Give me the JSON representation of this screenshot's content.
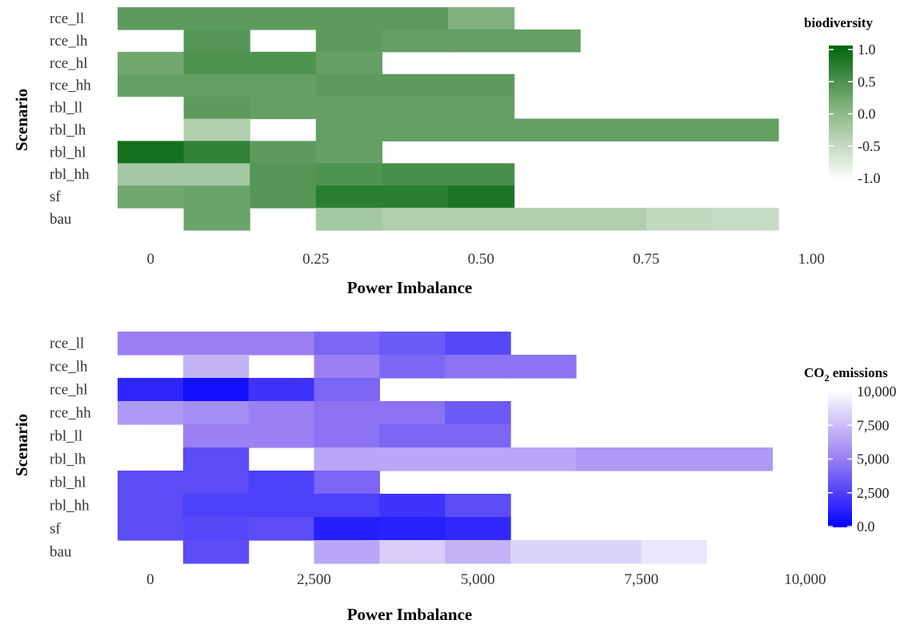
{
  "chart_data": [
    {
      "type": "heatmap",
      "xlabel": "Power Imbalance",
      "ylabel": "Scenario",
      "categories": [
        "rce_ll",
        "rce_lh",
        "rce_hl",
        "rce_hh",
        "rbl_ll",
        "rbl_lh",
        "rbl_hl",
        "rbl_hh",
        "sf",
        "bau"
      ],
      "x": [
        0.05,
        0.15,
        0.25,
        0.35,
        0.45,
        0.55,
        0.65,
        0.75,
        0.85,
        0.95,
        1.05
      ],
      "xlim": [
        -0.05,
        1.05
      ],
      "xticks": [
        0,
        0.25,
        0.5,
        0.75,
        1.0
      ],
      "xtick_labels": [
        "0",
        "0.25",
        "0.50",
        "0.75",
        "1.00"
      ],
      "values": [
        [
          0.35,
          0.35,
          0.35,
          0.35,
          0.35,
          0.1,
          null,
          null,
          null,
          null,
          null
        ],
        [
          null,
          0.4,
          null,
          0.35,
          0.3,
          0.3,
          0.3,
          null,
          null,
          null,
          null
        ],
        [
          0.2,
          0.45,
          0.45,
          0.3,
          null,
          null,
          null,
          null,
          null,
          null,
          null
        ],
        [
          0.3,
          0.3,
          0.3,
          0.35,
          0.35,
          0.35,
          null,
          null,
          null,
          null,
          null
        ],
        [
          null,
          0.35,
          0.3,
          0.3,
          0.3,
          0.3,
          null,
          null,
          null,
          null,
          null
        ],
        [
          null,
          -0.3,
          null,
          0.3,
          0.3,
          0.3,
          0.3,
          0.3,
          0.3,
          0.3,
          null
        ],
        [
          0.85,
          0.65,
          0.35,
          0.3,
          null,
          null,
          null,
          null,
          null,
          null,
          null
        ],
        [
          -0.2,
          -0.2,
          0.4,
          0.45,
          0.5,
          0.5,
          null,
          null,
          null,
          null,
          null
        ],
        [
          0.2,
          0.25,
          0.4,
          0.7,
          0.7,
          0.8,
          null,
          null,
          null,
          null,
          null
        ],
        [
          null,
          0.25,
          null,
          -0.2,
          -0.3,
          -0.3,
          -0.3,
          -0.3,
          -0.45,
          -0.5,
          null
        ]
      ],
      "legend": {
        "title": "biodiversity",
        "position": "right",
        "min": -1.0,
        "max": 1.0,
        "ticks": [
          1.0,
          0.5,
          0.0,
          -0.5,
          -1.0
        ],
        "tick_labels": [
          "1.0",
          "0.5",
          "0.0",
          "-0.5",
          "-1.0"
        ],
        "color_low": "#ffffff",
        "color_high": "#00640a"
      }
    },
    {
      "type": "heatmap",
      "xlabel": "Power Imbalance",
      "ylabel": "Scenario",
      "categories": [
        "rce_ll",
        "rce_lh",
        "rce_hl",
        "rce_hh",
        "rbl_ll",
        "rbl_lh",
        "rbl_hl",
        "rbl_hh",
        "sf",
        "bau"
      ],
      "x": [
        500,
        1500,
        2500,
        3500,
        4500,
        5500,
        6500,
        7500,
        8500,
        9500,
        10500
      ],
      "xlim": [
        -500,
        10500
      ],
      "xticks": [
        0,
        2500,
        5000,
        7500,
        10000
      ],
      "xtick_labels": [
        "0",
        "2,500",
        "5,000",
        "7,500",
        "10,000"
      ],
      "values": [
        [
          5000,
          5000,
          5000,
          4000,
          3500,
          2800,
          null,
          null,
          null,
          null,
          null
        ],
        [
          null,
          7000,
          null,
          5000,
          4000,
          4500,
          4500,
          null,
          null,
          null,
          null
        ],
        [
          1500,
          600,
          2000,
          4000,
          null,
          null,
          null,
          null,
          null,
          null,
          null
        ],
        [
          6000,
          5500,
          5000,
          4500,
          4500,
          3500,
          null,
          null,
          null,
          null,
          null
        ],
        [
          null,
          5000,
          5000,
          4500,
          4000,
          4000,
          null,
          null,
          null,
          null,
          null
        ],
        [
          null,
          3000,
          null,
          6500,
          6500,
          6500,
          6500,
          6000,
          6000,
          6000,
          null
        ],
        [
          3000,
          3000,
          2500,
          4000,
          null,
          null,
          null,
          null,
          null,
          null,
          null
        ],
        [
          3000,
          2500,
          2500,
          2500,
          2000,
          3000,
          null,
          null,
          null,
          null,
          null
        ],
        [
          3000,
          2800,
          3000,
          1200,
          1300,
          1600,
          null,
          null,
          null,
          null,
          null
        ],
        [
          null,
          3000,
          null,
          6500,
          8000,
          7000,
          8300,
          8300,
          9000,
          10000,
          null
        ]
      ],
      "legend": {
        "title": "CO",
        "title_subscript": "2",
        "title_suffix": " emissions",
        "position": "right",
        "min": 0,
        "max": 10000,
        "ticks": [
          10000,
          7500,
          5000,
          2500,
          0
        ],
        "tick_labels": [
          "10,000",
          "7,500",
          "5,000",
          "2,500",
          "0.0"
        ],
        "color_low": "#0000ff",
        "color_high": "#ffffff"
      }
    }
  ]
}
